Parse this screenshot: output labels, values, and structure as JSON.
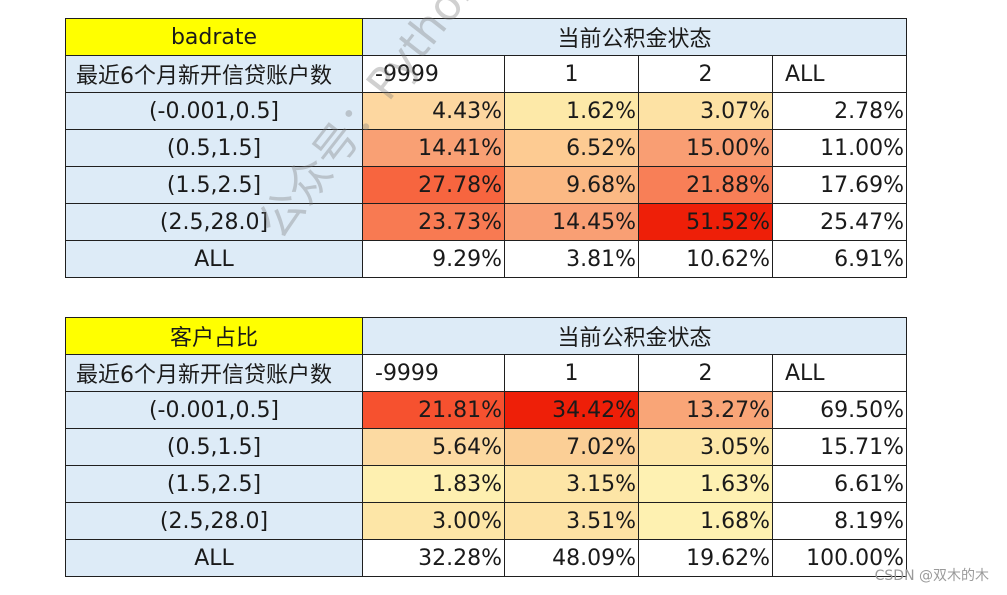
{
  "chart_data": [
    {
      "type": "table",
      "title": "badrate",
      "column_group": "当前公积金状态",
      "row_header": "最近6个月新开信贷账户数",
      "columns": [
        "-9999",
        "1",
        "2",
        "ALL"
      ],
      "rows": [
        {
          "label": "(-0.001,0.5]",
          "values": [
            "4.43%",
            "1.62%",
            "3.07%",
            "2.78%"
          ],
          "colors": [
            "#fdd7a0",
            "#fde9a8",
            "#fde2a4",
            "#ffffff"
          ]
        },
        {
          "label": "(0.5,1.5]",
          "values": [
            "14.41%",
            "6.52%",
            "15.00%",
            "11.00%"
          ],
          "colors": [
            "#f9a074",
            "#fdcb92",
            "#f99e73",
            "#ffffff"
          ]
        },
        {
          "label": "(1.5,2.5]",
          "values": [
            "27.78%",
            "9.68%",
            "21.88%",
            "17.69%"
          ],
          "colors": [
            "#f7653f",
            "#fbb984",
            "#f87f57",
            "#ffffff"
          ]
        },
        {
          "label": "(2.5,28.0]",
          "values": [
            "23.73%",
            "14.45%",
            "51.52%",
            "25.47%"
          ],
          "colors": [
            "#f87a52",
            "#f99f74",
            "#ee1f08",
            "#ffffff"
          ]
        },
        {
          "label": "ALL",
          "values": [
            "9.29%",
            "3.81%",
            "10.62%",
            "6.91%"
          ],
          "colors": [
            "#ffffff",
            "#ffffff",
            "#ffffff",
            "#ffffff"
          ]
        }
      ]
    },
    {
      "type": "table",
      "title": "客户占比",
      "column_group": "当前公积金状态",
      "row_header": "最近6个月新开信贷账户数",
      "columns": [
        "-9999",
        "1",
        "2",
        "ALL"
      ],
      "rows": [
        {
          "label": "(-0.001,0.5]",
          "values": [
            "21.81%",
            "34.42%",
            "13.27%",
            "69.50%"
          ],
          "colors": [
            "#f6512f",
            "#ee1f08",
            "#f9a577",
            "#ffffff"
          ]
        },
        {
          "label": "(0.5,1.5]",
          "values": [
            "5.64%",
            "7.02%",
            "3.05%",
            "15.71%"
          ],
          "colors": [
            "#fcdaa2",
            "#fbcf96",
            "#fde7a8",
            "#ffffff"
          ]
        },
        {
          "label": "(1.5,2.5]",
          "values": [
            "1.83%",
            "3.15%",
            "1.63%",
            "6.61%"
          ],
          "colors": [
            "#fef0b0",
            "#fde5a6",
            "#fef1b2",
            "#ffffff"
          ]
        },
        {
          "label": "(2.5,28.0]",
          "values": [
            "3.00%",
            "3.51%",
            "1.68%",
            "8.19%"
          ],
          "colors": [
            "#fde6a7",
            "#fde2a4",
            "#fef1b1",
            "#ffffff"
          ]
        },
        {
          "label": "ALL",
          "values": [
            "32.28%",
            "48.09%",
            "19.62%",
            "100.00%"
          ],
          "colors": [
            "#ffffff",
            "#ffffff",
            "#ffffff",
            "#ffffff"
          ]
        }
      ]
    }
  ],
  "watermark": "公众号：Python数据科学",
  "credit": "CSDN @双木的木"
}
